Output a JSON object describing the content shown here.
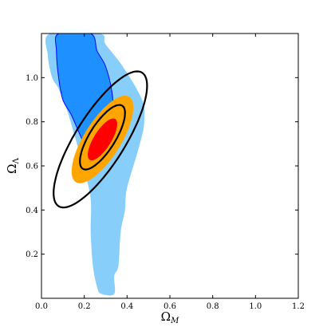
{
  "chart_data": {
    "type": "contour",
    "xlabel": "Ω_M",
    "ylabel": "Ω_Λ",
    "xlim": [
      0.0,
      1.2
    ],
    "ylim": [
      0.0,
      1.2
    ],
    "xticks": [
      "0.0",
      "0.2",
      "0.4",
      "0.6",
      "0.8",
      "1.0",
      "1.2"
    ],
    "yticks": [
      "0.2",
      "0.4",
      "0.6",
      "0.8",
      "1.0"
    ],
    "grid": false,
    "colors": {
      "wide_region": "#87cefa",
      "upper_region": "#1e90ff",
      "upper_region_edge": "#0000ff",
      "outer_ellipse_fill": "#ffa500",
      "inner_ellipse_fill": "#ff0000",
      "contour_lines": "#000000"
    },
    "regions": [
      {
        "id": "wide_light_blue",
        "fill": "#87cefa",
        "points": [
          [
            0.04,
            1.2
          ],
          [
            0.03,
            1.1
          ],
          [
            0.05,
            1.0
          ],
          [
            0.08,
            0.95
          ],
          [
            0.12,
            0.85
          ],
          [
            0.16,
            0.72
          ],
          [
            0.2,
            0.58
          ],
          [
            0.23,
            0.45
          ],
          [
            0.23,
            0.3
          ],
          [
            0.24,
            0.15
          ],
          [
            0.26,
            0.05
          ],
          [
            0.28,
            0.02
          ],
          [
            0.34,
            0.02
          ],
          [
            0.34,
            0.1
          ],
          [
            0.36,
            0.15
          ],
          [
            0.37,
            0.3
          ],
          [
            0.39,
            0.4
          ],
          [
            0.4,
            0.5
          ],
          [
            0.46,
            0.7
          ],
          [
            0.48,
            0.8
          ],
          [
            0.47,
            0.9
          ],
          [
            0.38,
            1.05
          ],
          [
            0.3,
            1.15
          ],
          [
            0.27,
            1.2
          ]
        ]
      },
      {
        "id": "upper_dark_blue",
        "fill": "#1e90ff",
        "stroke": "#0000ff",
        "points": [
          [
            0.08,
            1.2
          ],
          [
            0.07,
            1.12
          ],
          [
            0.08,
            1.0
          ],
          [
            0.1,
            0.9
          ],
          [
            0.14,
            0.83
          ],
          [
            0.19,
            0.72
          ],
          [
            0.23,
            0.66
          ],
          [
            0.26,
            0.62
          ],
          [
            0.29,
            0.63
          ],
          [
            0.33,
            0.71
          ],
          [
            0.34,
            0.78
          ],
          [
            0.33,
            0.93
          ],
          [
            0.3,
            1.05
          ],
          [
            0.26,
            1.12
          ],
          [
            0.23,
            1.2
          ]
        ]
      }
    ],
    "ellipses": [
      {
        "id": "outer_filled",
        "cx": 0.285,
        "cy": 0.72,
        "a": 0.23,
        "b": 0.085,
        "angle_deg": 57,
        "fill": "#ffa500"
      },
      {
        "id": "inner_filled",
        "cx": 0.285,
        "cy": 0.72,
        "a": 0.11,
        "b": 0.04,
        "angle_deg": 57,
        "fill": "#ff0000"
      },
      {
        "id": "inner_line",
        "cx": 0.285,
        "cy": 0.73,
        "a": 0.17,
        "b": 0.06,
        "angle_deg": 57,
        "stroke": "#000000"
      },
      {
        "id": "outer_line",
        "cx": 0.275,
        "cy": 0.72,
        "a": 0.36,
        "b": 0.115,
        "angle_deg": 57,
        "stroke": "#000000"
      }
    ]
  }
}
